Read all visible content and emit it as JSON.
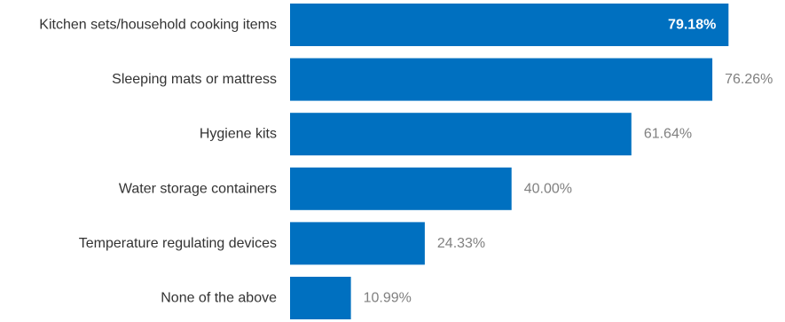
{
  "chart_data": {
    "type": "bar",
    "orientation": "horizontal",
    "categories": [
      "Kitchen sets/household cooking items",
      "Sleeping mats or mattress",
      "Hygiene kits",
      "Water storage containers",
      "Temperature regulating devices",
      "None of the above"
    ],
    "values": [
      79.18,
      76.26,
      61.64,
      40.0,
      24.33,
      10.99
    ],
    "value_labels": [
      "79.18%",
      "76.26%",
      "61.64%",
      "40.00%",
      "24.33%",
      "10.99%"
    ],
    "xlim": [
      0,
      100
    ],
    "grid": false,
    "legend": "none"
  },
  "colors": {
    "bar": "#0070c0",
    "label_text": "#333333",
    "value_outside": "#808080",
    "value_inside": "#ffffff"
  }
}
